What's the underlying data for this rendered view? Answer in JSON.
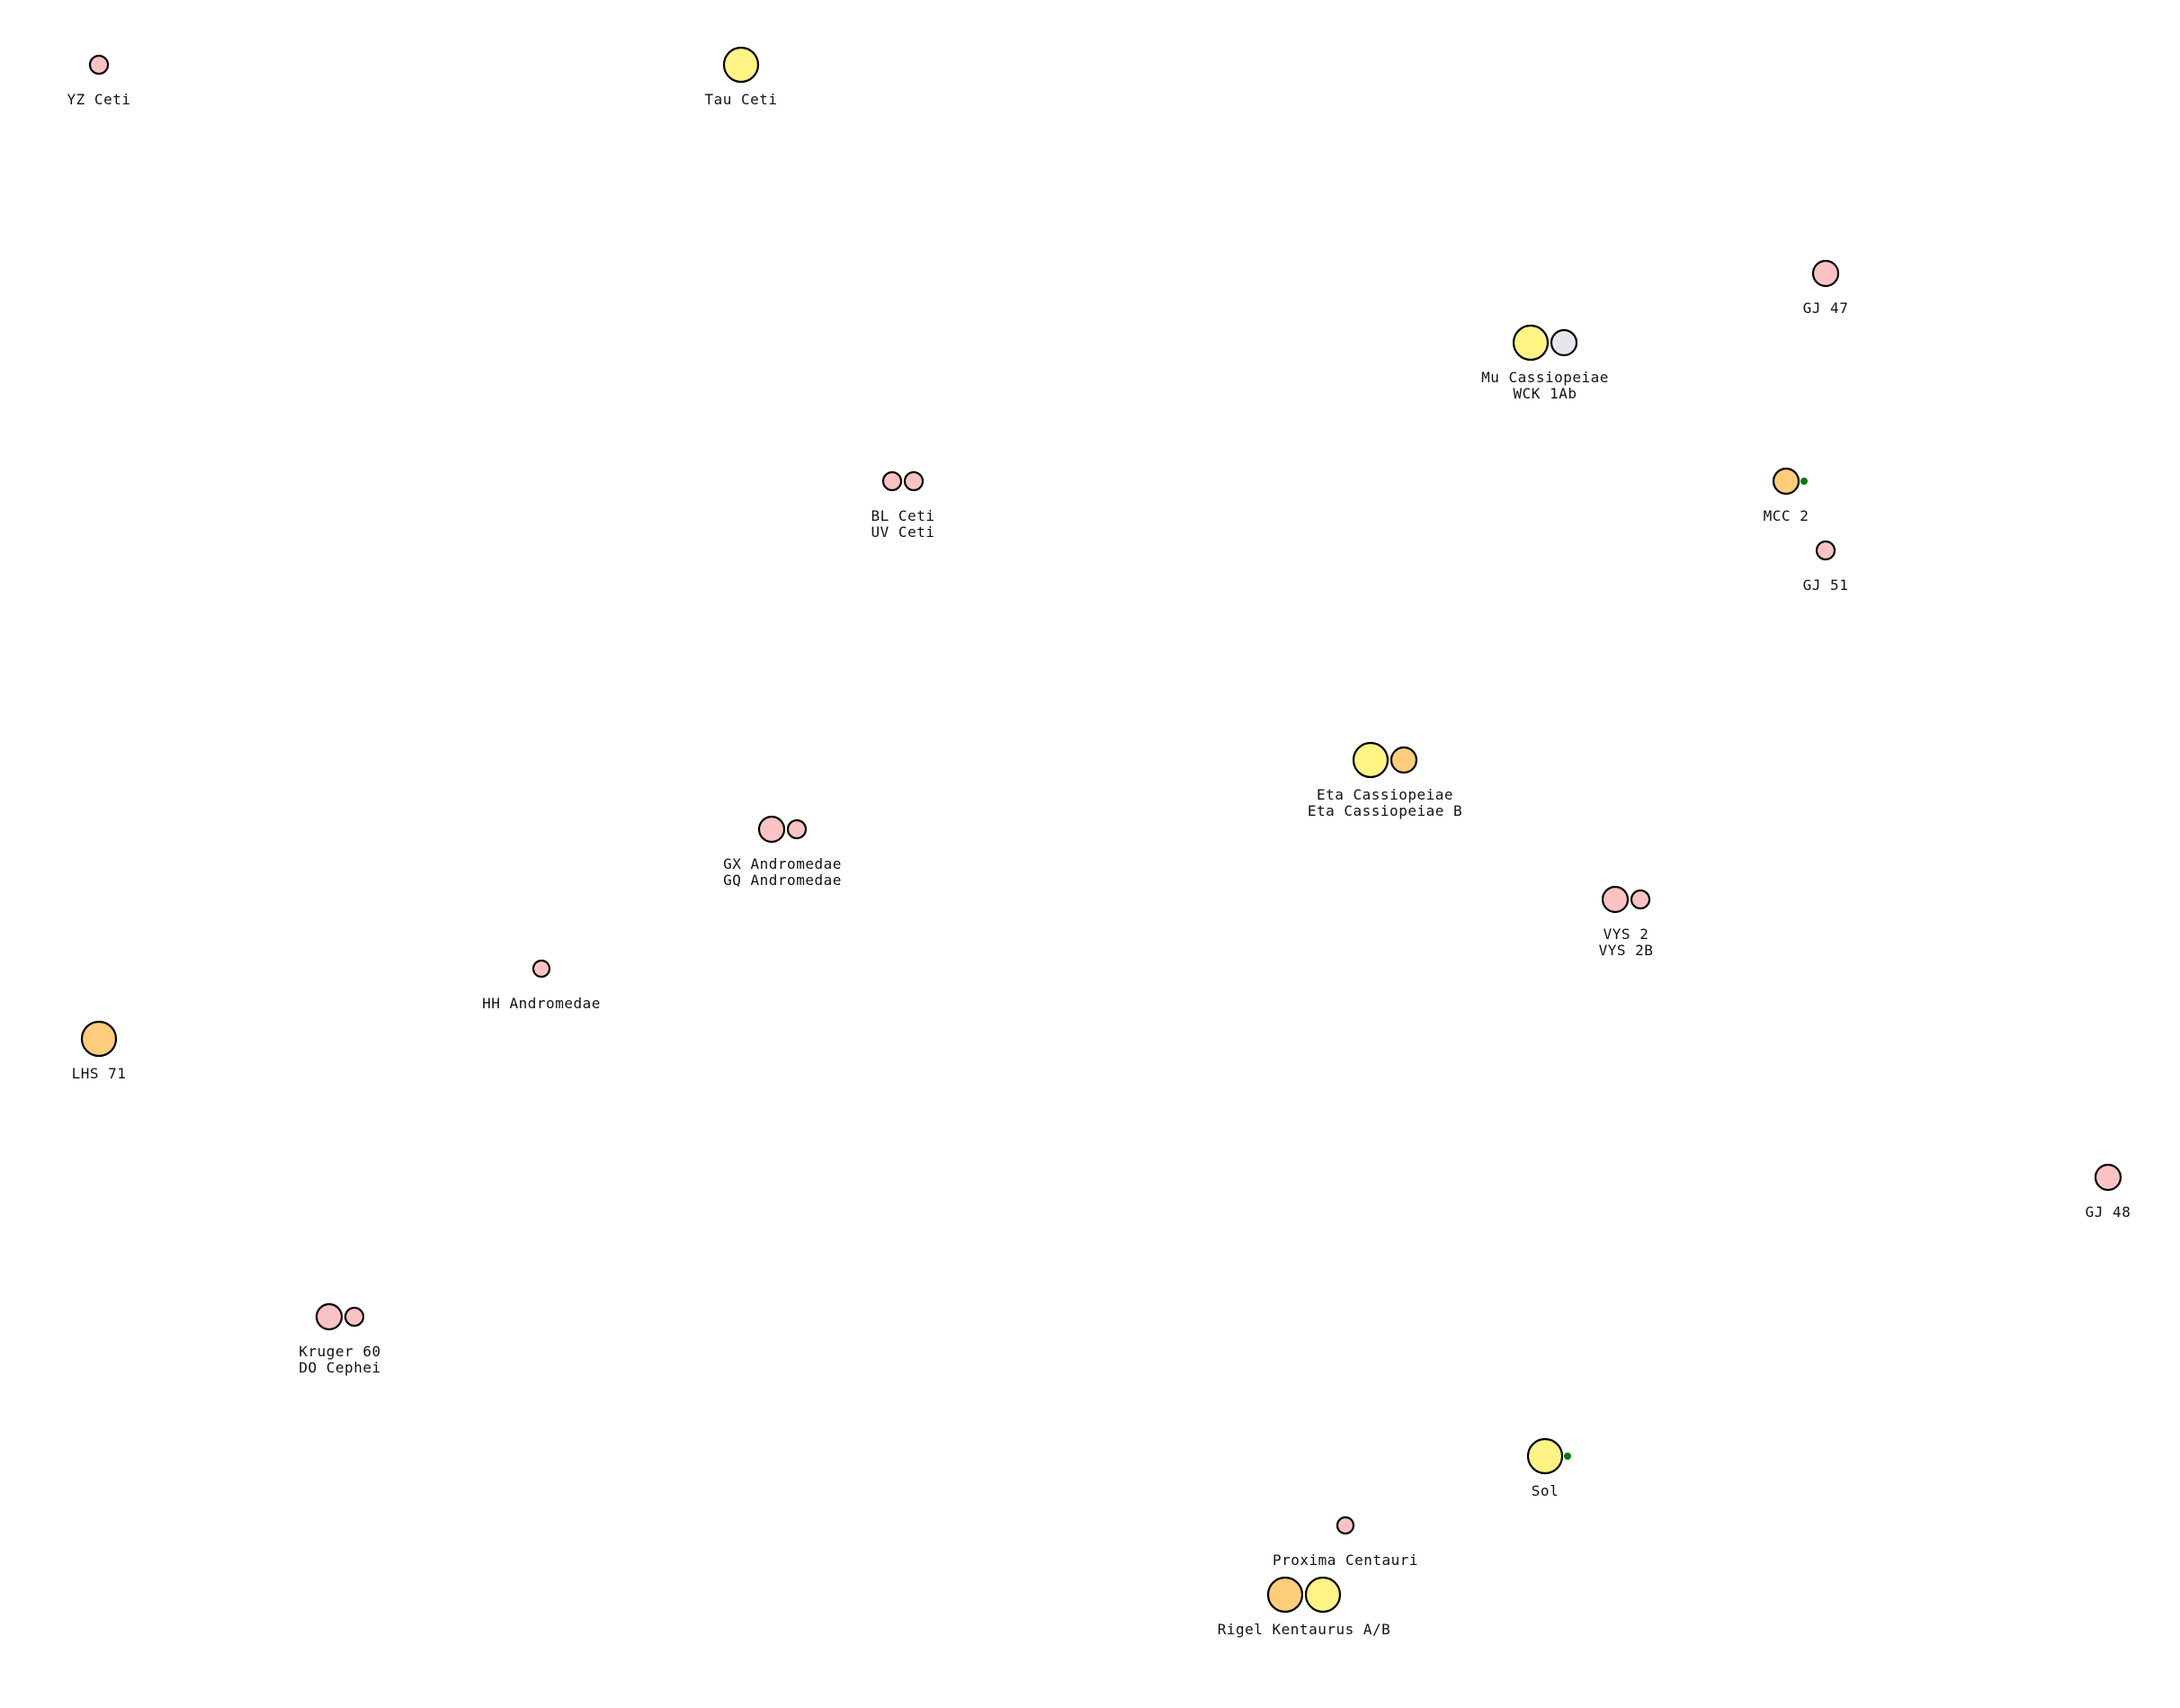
{
  "colors": {
    "yellow": "#fff385",
    "orange": "#fdcd7b",
    "pink": "#fbc3c3",
    "white": "#e6e6ee",
    "planet": "#0b7a0b"
  },
  "systems": [
    {
      "id": "yz-ceti",
      "names": [
        "YZ Ceti"
      ],
      "bodies": [
        {
          "kind": "star",
          "color": "pink",
          "size": "s"
        }
      ]
    },
    {
      "id": "tau-ceti",
      "names": [
        "Tau Ceti"
      ],
      "bodies": [
        {
          "kind": "star",
          "color": "yellow",
          "size": "l"
        }
      ]
    },
    {
      "id": "gj-47",
      "names": [
        "GJ 47"
      ],
      "bodies": [
        {
          "kind": "star",
          "color": "pink",
          "size": "m"
        }
      ]
    },
    {
      "id": "mu-cassiopeiae",
      "names": [
        "Mu Cassiopeiae",
        "WCK 1Ab"
      ],
      "bodies": [
        {
          "kind": "star",
          "color": "yellow",
          "size": "l"
        },
        {
          "kind": "star",
          "color": "white",
          "size": "m"
        }
      ]
    },
    {
      "id": "bl-ceti",
      "names": [
        "BL Ceti",
        "UV Ceti"
      ],
      "bodies": [
        {
          "kind": "star",
          "color": "pink",
          "size": "s"
        },
        {
          "kind": "star",
          "color": "pink",
          "size": "s"
        }
      ]
    },
    {
      "id": "mcc-2",
      "names": [
        "MCC 2"
      ],
      "bodies": [
        {
          "kind": "star",
          "color": "orange",
          "size": "m"
        },
        {
          "kind": "planet",
          "color": "planet",
          "size": "p"
        }
      ]
    },
    {
      "id": "gj-51",
      "names": [
        "GJ 51"
      ],
      "bodies": [
        {
          "kind": "star",
          "color": "pink",
          "size": "s"
        }
      ]
    },
    {
      "id": "eta-cassiopeiae",
      "names": [
        "Eta Cassiopeiae",
        "Eta Cassiopeiae B"
      ],
      "bodies": [
        {
          "kind": "star",
          "color": "yellow",
          "size": "l"
        },
        {
          "kind": "star",
          "color": "orange",
          "size": "m"
        }
      ]
    },
    {
      "id": "gx-andromedae",
      "names": [
        "GX Andromedae",
        "GQ Andromedae"
      ],
      "bodies": [
        {
          "kind": "star",
          "color": "pink",
          "size": "m"
        },
        {
          "kind": "star",
          "color": "pink",
          "size": "s"
        }
      ]
    },
    {
      "id": "vys-2",
      "names": [
        "VYS 2",
        "VYS 2B"
      ],
      "bodies": [
        {
          "kind": "star",
          "color": "pink",
          "size": "m"
        },
        {
          "kind": "star",
          "color": "pink",
          "size": "s"
        }
      ]
    },
    {
      "id": "hh-andromedae",
      "names": [
        "HH Andromedae"
      ],
      "bodies": [
        {
          "kind": "star",
          "color": "pink",
          "size": "xs"
        }
      ]
    },
    {
      "id": "lhs-71",
      "names": [
        "LHS 71"
      ],
      "bodies": [
        {
          "kind": "star",
          "color": "orange",
          "size": "l"
        }
      ]
    },
    {
      "id": "gj-48",
      "names": [
        "GJ 48"
      ],
      "bodies": [
        {
          "kind": "star",
          "color": "pink",
          "size": "m"
        }
      ]
    },
    {
      "id": "kruger-60",
      "names": [
        "Kruger 60",
        "DO Cephei"
      ],
      "bodies": [
        {
          "kind": "star",
          "color": "pink",
          "size": "m"
        },
        {
          "kind": "star",
          "color": "pink",
          "size": "s"
        }
      ]
    },
    {
      "id": "sol",
      "names": [
        "Sol"
      ],
      "bodies": [
        {
          "kind": "star",
          "color": "yellow",
          "size": "l"
        },
        {
          "kind": "planet",
          "color": "planet",
          "size": "p"
        }
      ]
    },
    {
      "id": "proxima-centauri",
      "names": [
        "Proxima Centauri"
      ],
      "bodies": [
        {
          "kind": "star",
          "color": "pink",
          "size": "xs"
        }
      ]
    },
    {
      "id": "rigel-kentaurus",
      "names": [
        "Rigel Kentaurus A/B"
      ],
      "bodies": [
        {
          "kind": "star",
          "color": "orange",
          "size": "l"
        },
        {
          "kind": "star",
          "color": "yellow",
          "size": "l"
        }
      ]
    }
  ]
}
